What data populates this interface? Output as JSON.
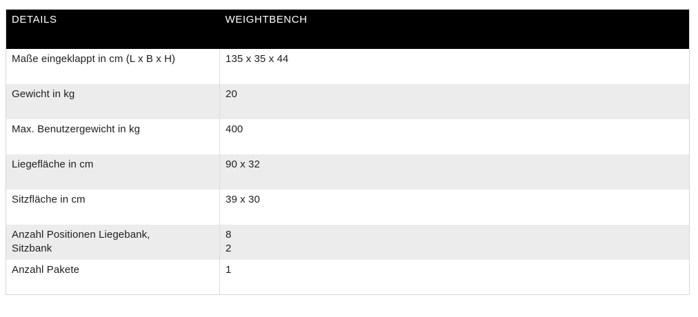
{
  "theme": {
    "header_bg": "#000000",
    "header_text": "#ffffff",
    "row_bg": "#ffffff",
    "row_alt_bg": "#ececec",
    "text_color": "#1d1d1d",
    "table_border": "#d6d6d6",
    "column_divider": "#dcdcdc",
    "page_bg": "#ffffff"
  },
  "table": {
    "columns": [
      {
        "label": "DETAILS"
      },
      {
        "label": "WEIGHTBENCH"
      }
    ],
    "rows": [
      {
        "label": "Maße eingeklappt in cm (L x B x H)",
        "value": "135 x 35 x 44"
      },
      {
        "label": "Gewicht in kg",
        "value": "20"
      },
      {
        "label": "Max. Benutzergewicht in kg",
        "value": "400"
      },
      {
        "label": "Liegefläche in cm",
        "value": "90 x 32"
      },
      {
        "label": "Sitzfläche in cm",
        "value": "39 x 30"
      },
      {
        "label": "Anzahl Positionen Liegebank,\nSitzbank",
        "value": "8\n2"
      },
      {
        "label": "Anzahl Pakete",
        "value": "1"
      }
    ]
  }
}
